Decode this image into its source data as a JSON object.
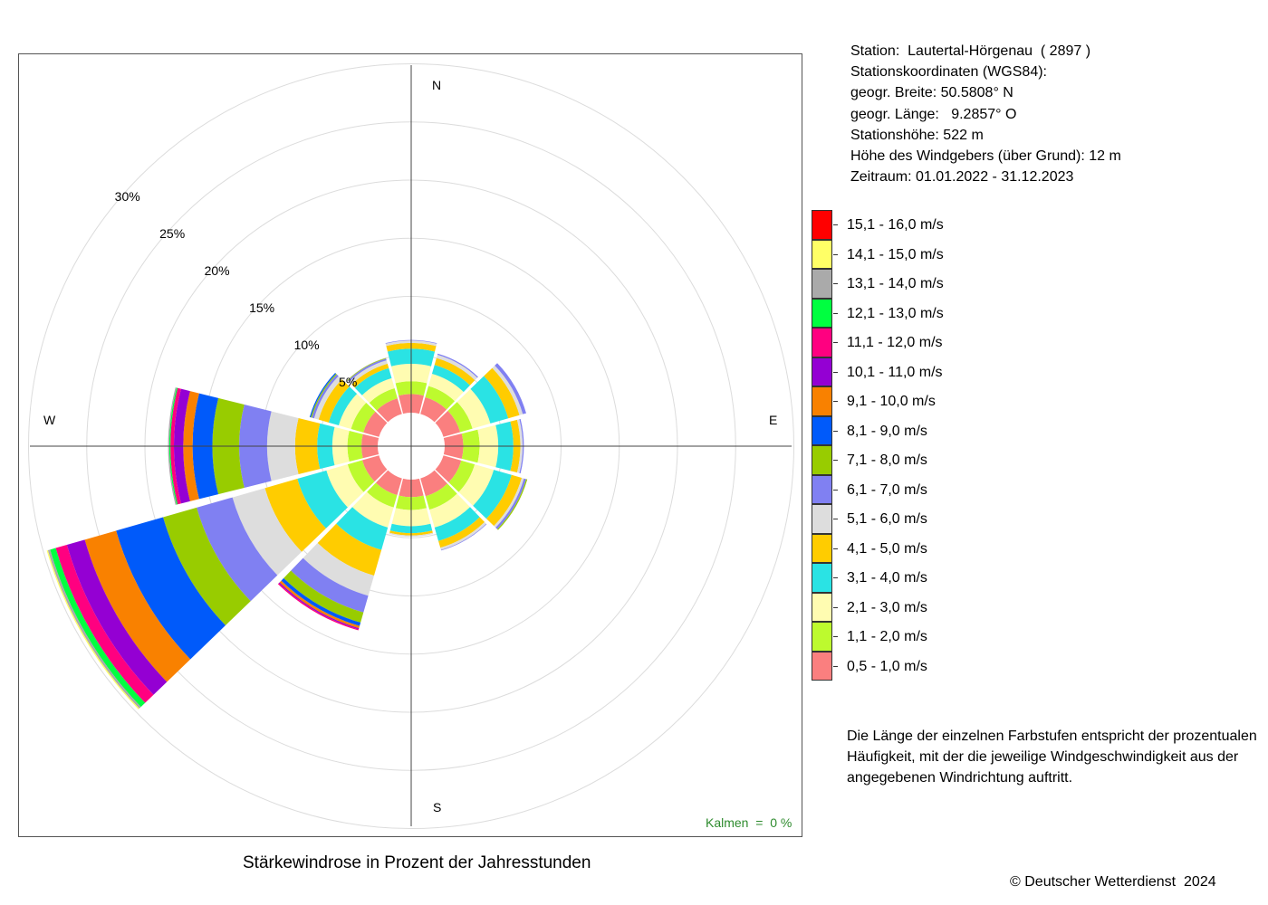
{
  "chart_data": {
    "type": "wind-rose",
    "title": "Stärkewindrose in Prozent der Jahresstunden",
    "radial_unit": "%",
    "radial_ticks": [
      5,
      10,
      15,
      20,
      25,
      30
    ],
    "rmax": 30,
    "compass": {
      "N": "N",
      "E": "E",
      "S": "S",
      "W": "W"
    },
    "directions_deg": [
      0,
      30,
      60,
      90,
      120,
      150,
      180,
      210,
      240,
      270,
      300,
      330
    ],
    "speed_classes": [
      {
        "label": "0,5 - 1,0 m/s",
        "color": "#fa7f7f"
      },
      {
        "label": "1,1 - 2,0 m/s",
        "color": "#bdfa2e"
      },
      {
        "label": "2,1 - 3,0 m/s",
        "color": "#fffcb1"
      },
      {
        "label": "3,1 - 4,0 m/s",
        "color": "#2ae3e4"
      },
      {
        "label": "4,1 - 5,0 m/s",
        "color": "#ffcc00"
      },
      {
        "label": "5,1 - 6,0 m/s",
        "color": "#dddddd"
      },
      {
        "label": "6,1 - 7,0 m/s",
        "color": "#8080f2"
      },
      {
        "label": "7,1 - 8,0 m/s",
        "color": "#98cc00"
      },
      {
        "label": "8,1 - 9,0 m/s",
        "color": "#005afa"
      },
      {
        "label": "9,1 - 10,0 m/s",
        "color": "#f98100"
      },
      {
        "label": "10,1 - 11,0 m/s",
        "color": "#9400d3"
      },
      {
        "label": "11,1 - 12,0 m/s",
        "color": "#ff0080"
      },
      {
        "label": "12,1 - 13,0 m/s",
        "color": "#00ff40"
      },
      {
        "label": "13,1 - 14,0 m/s",
        "color": "#aaaaaa"
      },
      {
        "label": "14,1 - 15,0 m/s",
        "color": "#ffff66"
      },
      {
        "label": "15,1 - 16,0 m/s",
        "color": "#ff0000"
      }
    ],
    "series_note": "values per direction, cumulative percent boundaries from 0.5-1.0 m/s outward (estimated)",
    "bins_cumulative": [
      [
        1.6,
        2.7,
        4.2,
        5.5,
        6.0,
        6.2,
        6.25
      ],
      [
        1.5,
        2.5,
        3.6,
        4.4,
        5.0,
        5.3,
        5.4
      ],
      [
        1.5,
        2.6,
        4.2,
        5.8,
        6.8,
        7.1,
        7.4
      ],
      [
        1.6,
        3.0,
        4.6,
        5.9,
        6.5,
        6.7,
        6.8
      ],
      [
        1.6,
        2.8,
        4.5,
        6.1,
        7.0,
        7.2,
        7.4,
        7.5
      ],
      [
        1.6,
        2.8,
        4.4,
        5.6,
        6.2,
        6.4,
        6.45
      ],
      [
        1.5,
        2.6,
        4.0,
        4.6,
        4.8,
        4.9
      ],
      [
        1.5,
        2.6,
        4.4,
        6.4,
        8.7,
        10.5,
        12.0,
        12.9,
        13.2,
        13.4,
        13.5,
        13.6
      ],
      [
        1.5,
        2.8,
        4.7,
        7.3,
        10.2,
        13.1,
        16.3,
        19.3,
        23.5,
        26.3,
        27.9,
        28.9,
        29.4,
        29.6,
        29.7
      ],
      [
        1.4,
        2.6,
        3.9,
        5.2,
        7.1,
        9.5,
        11.9,
        14.2,
        15.9,
        16.7,
        17.5,
        17.8,
        17.9,
        18.0
      ],
      [
        1.4,
        2.5,
        3.6,
        4.5,
        5.4,
        5.8,
        6.0,
        6.1,
        6.2
      ],
      [
        1.4,
        2.3,
        3.2,
        4.1,
        4.5,
        4.8,
        4.95,
        5.0
      ]
    ],
    "grid": true
  },
  "calm": "Kalmen  =  0 %",
  "station": {
    "lines": [
      "Station:  Lautertal-Hörgenau  ( 2897 )",
      "Stationskoordinaten (WGS84):",
      "geogr. Breite: 50.5808° N",
      "geogr. Länge:   9.2857° O",
      "Stationshöhe: 522 m",
      "Höhe des Windgebers (über Grund): 12 m",
      "Zeitraum: 01.01.2022 - 31.12.2023"
    ]
  },
  "note": "Die Länge der einzelnen Farbstufen entspricht der prozentualen Häufigkeit, mit der die jeweilige Windgeschwindigkeit aus der angegebenen Windrichtung auftritt.",
  "copyright": "© Deutscher Wetterdienst  2024"
}
